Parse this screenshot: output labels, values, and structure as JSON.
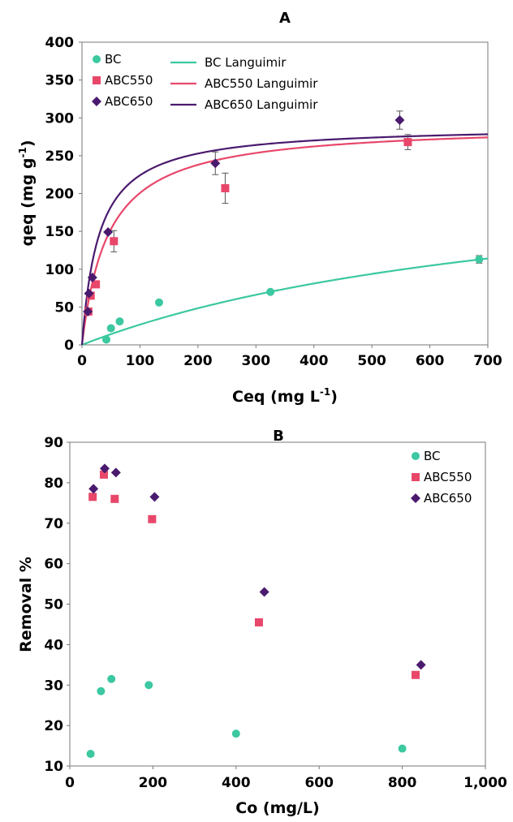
{
  "chart_data": [
    {
      "type": "scatter",
      "title": "A",
      "xlabel": "Ceq (mg L",
      "xlabel_sup": "-1",
      "xlabel_close": ")",
      "ylabel": "qeq (mg g",
      "ylabel_sup": "-1",
      "ylabel_close": ")",
      "xlim": [
        0,
        700
      ],
      "ylim": [
        0,
        400
      ],
      "xticks": [
        "0",
        "100",
        "200",
        "300",
        "400",
        "500",
        "600",
        "700"
      ],
      "yticks": [
        "0",
        "50",
        "100",
        "150",
        "200",
        "250",
        "300",
        "350",
        "400"
      ],
      "grid": false,
      "legend_position": "top-left",
      "series": [
        {
          "name": "BC",
          "marker": "circle",
          "color": "#3cc8a0",
          "points": [
            {
              "x": 42,
              "y": 7,
              "err": 0
            },
            {
              "x": 50,
              "y": 22,
              "err": 0
            },
            {
              "x": 65,
              "y": 31,
              "err": 0
            },
            {
              "x": 133,
              "y": 56,
              "err": 0
            },
            {
              "x": 325,
              "y": 70,
              "err": 2
            },
            {
              "x": 685,
              "y": 113,
              "err": 5
            }
          ]
        },
        {
          "name": "ABC550",
          "marker": "square",
          "color": "#e8476a",
          "points": [
            {
              "x": 11,
              "y": 44,
              "err": 0
            },
            {
              "x": 15,
              "y": 65,
              "err": 0
            },
            {
              "x": 24,
              "y": 80,
              "err": 0
            },
            {
              "x": 55,
              "y": 137,
              "err": 14
            },
            {
              "x": 247,
              "y": 207,
              "err": 20
            },
            {
              "x": 562,
              "y": 268,
              "err": 10
            }
          ]
        },
        {
          "name": "ABC650",
          "marker": "diamond",
          "color": "#4a1a6e",
          "points": [
            {
              "x": 10,
              "y": 44,
              "err": 0
            },
            {
              "x": 12,
              "y": 68,
              "err": 0
            },
            {
              "x": 18,
              "y": 89,
              "err": 0
            },
            {
              "x": 45,
              "y": 149,
              "err": 0
            },
            {
              "x": 230,
              "y": 240,
              "err": 15
            },
            {
              "x": 548,
              "y": 297,
              "err": 12
            }
          ]
        }
      ],
      "fits": [
        {
          "name": "BC Languimir",
          "color": "#3cc8a0",
          "qmax": 250,
          "KL": 0.0012
        },
        {
          "name": "ABC550 Languimir",
          "color": "#e8476a",
          "qmax": 292,
          "KL": 0.022
        },
        {
          "name": "ABC650 Languimir",
          "color": "#4a1a6e",
          "qmax": 290,
          "KL": 0.034
        }
      ]
    },
    {
      "type": "scatter",
      "title": "B",
      "xlabel": "Co (mg/L)",
      "ylabel": "Removal %",
      "xlim": [
        0,
        1000
      ],
      "ylim": [
        10,
        90
      ],
      "xticks": [
        "0",
        "200",
        "400",
        "600",
        "800",
        "1,000"
      ],
      "yticks": [
        "10",
        "20",
        "30",
        "40",
        "50",
        "60",
        "70",
        "80",
        "90"
      ],
      "grid": false,
      "legend_position": "top-right",
      "series": [
        {
          "name": "BC",
          "marker": "circle",
          "color": "#3cc8a0",
          "points": [
            {
              "x": 50,
              "y": 13
            },
            {
              "x": 75,
              "y": 28.5
            },
            {
              "x": 100,
              "y": 31.5
            },
            {
              "x": 190,
              "y": 30
            },
            {
              "x": 400,
              "y": 18
            },
            {
              "x": 800,
              "y": 14.3
            }
          ]
        },
        {
          "name": "ABC550",
          "marker": "square",
          "color": "#e8476a",
          "points": [
            {
              "x": 55,
              "y": 76.5
            },
            {
              "x": 82,
              "y": 82
            },
            {
              "x": 108,
              "y": 76
            },
            {
              "x": 198,
              "y": 71
            },
            {
              "x": 455,
              "y": 45.5
            },
            {
              "x": 832,
              "y": 32.5
            }
          ]
        },
        {
          "name": "ABC650",
          "marker": "diamond",
          "color": "#4a1a6e",
          "points": [
            {
              "x": 57,
              "y": 78.5
            },
            {
              "x": 84,
              "y": 83.5
            },
            {
              "x": 111,
              "y": 82.5
            },
            {
              "x": 204,
              "y": 76.5
            },
            {
              "x": 468,
              "y": 53
            },
            {
              "x": 845,
              "y": 35
            }
          ]
        }
      ]
    }
  ]
}
